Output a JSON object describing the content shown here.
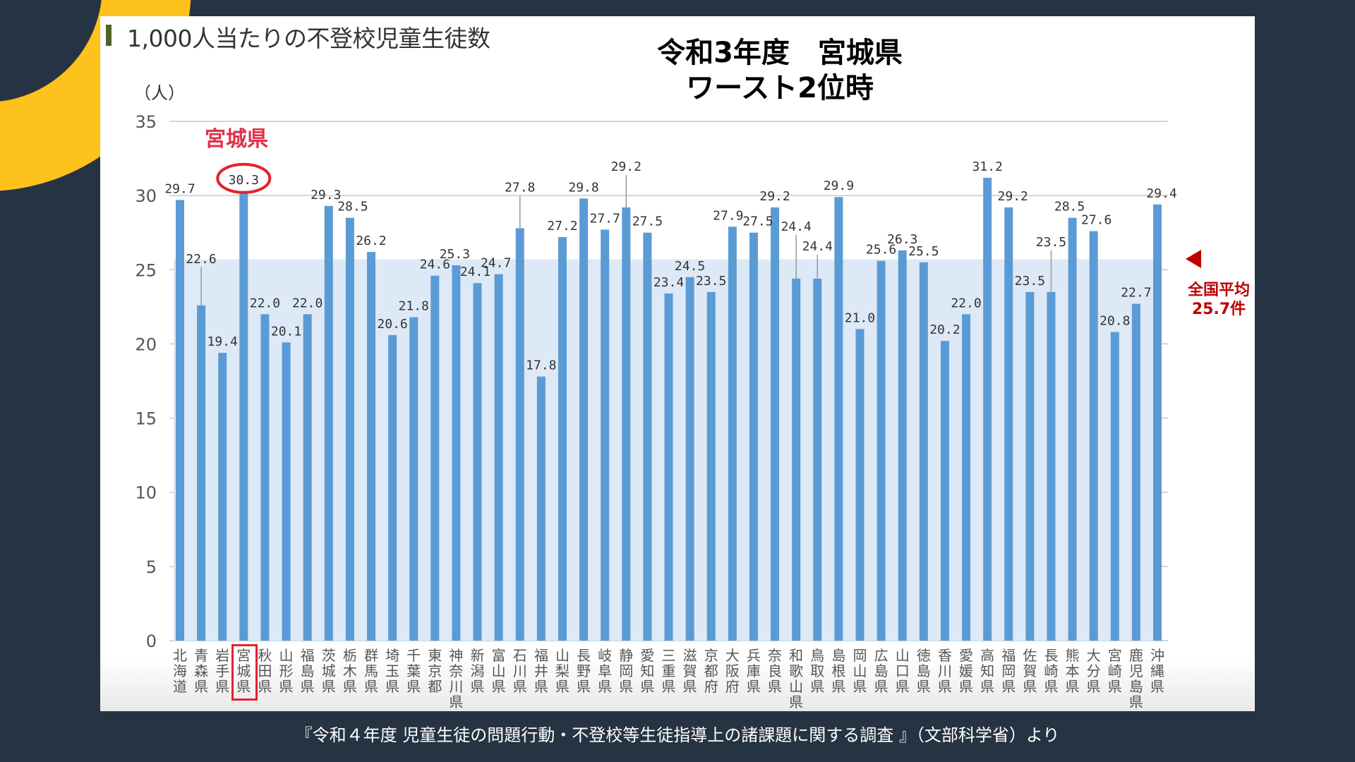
{
  "panel": {
    "title": "1,000人当たりの不登校児童生徒数",
    "unit": "（人）",
    "headline_line1": "令和3年度　宮城県",
    "headline_line2": "ワースト2位時",
    "highlight_label": "宮城県",
    "average_label_line1": "全国平均",
    "average_label_line2": "25.7件"
  },
  "source": "『令和４年度 児童生徒の問題行動・不登校等生徒指導上の諸課題に関する調査 』（文部科学省）より",
  "colors": {
    "background": "#263343",
    "accent_ring": "#fdc21b",
    "bar": "#5b9bd5",
    "average_band": "#dde9f6",
    "highlight": "#e2232c",
    "average_text": "#c00000",
    "title_marker": "#4f6228"
  },
  "chart_data": {
    "type": "bar",
    "title": "1,000人当たりの不登校児童生徒数",
    "subtitle": "令和3年度　宮城県 ワースト2位時",
    "xlabel": "",
    "ylabel": "（人）",
    "ylim": [
      0,
      35
    ],
    "yticks": [
      0,
      5,
      10,
      15,
      20,
      25,
      30,
      35
    ],
    "grid": true,
    "average": 25.7,
    "highlight_category": "宮城県",
    "categories": [
      "北海道",
      "青森県",
      "岩手県",
      "宮城県",
      "秋田県",
      "山形県",
      "福島県",
      "茨城県",
      "栃木県",
      "群馬県",
      "埼玉県",
      "千葉県",
      "東京都",
      "神奈川県",
      "新潟県",
      "富山県",
      "石川県",
      "福井県",
      "山梨県",
      "長野県",
      "岐阜県",
      "静岡県",
      "愛知県",
      "三重県",
      "滋賀県",
      "京都府",
      "大阪府",
      "兵庫県",
      "奈良県",
      "和歌山県",
      "鳥取県",
      "島根県",
      "岡山県",
      "広島県",
      "山口県",
      "徳島県",
      "香川県",
      "愛媛県",
      "高知県",
      "福岡県",
      "佐賀県",
      "長崎県",
      "熊本県",
      "大分県",
      "宮崎県",
      "鹿児島県",
      "沖縄県"
    ],
    "values": [
      29.7,
      22.6,
      19.4,
      30.3,
      22.0,
      20.1,
      22.0,
      29.3,
      28.5,
      26.2,
      20.6,
      21.8,
      24.6,
      25.3,
      24.1,
      24.7,
      27.8,
      17.8,
      27.2,
      29.8,
      27.7,
      29.2,
      27.5,
      23.4,
      24.5,
      23.5,
      27.9,
      27.5,
      29.2,
      24.4,
      24.4,
      29.9,
      21.0,
      25.6,
      26.3,
      25.5,
      20.2,
      22.0,
      31.2,
      29.2,
      23.5,
      23.5,
      28.5,
      27.6,
      20.8,
      22.7,
      29.4
    ],
    "value_labels": [
      "29.7",
      "22.6",
      "19.4",
      "30.3",
      "22.0",
      "20.1",
      "22.0",
      "29.3",
      "28.5",
      "26.2",
      "20.6",
      "21.8",
      "24.6",
      "25.3",
      "24.1",
      "24.7",
      "27.8",
      "17.8",
      "27.2",
      "29.8",
      "27.7",
      "29.2",
      "27.5",
      "23.4",
      "24.5",
      "23.5",
      "27.9",
      "27.5",
      "29.2",
      "24.4",
      "24.4",
      "29.9",
      "21.0",
      "25.6",
      "26.3",
      "25.5",
      "20.2",
      "22.0",
      "31.2",
      "29.2",
      "23.5",
      "23.5",
      "28.5",
      "27.6",
      "20.8",
      "22.7",
      "29.4"
    ]
  }
}
